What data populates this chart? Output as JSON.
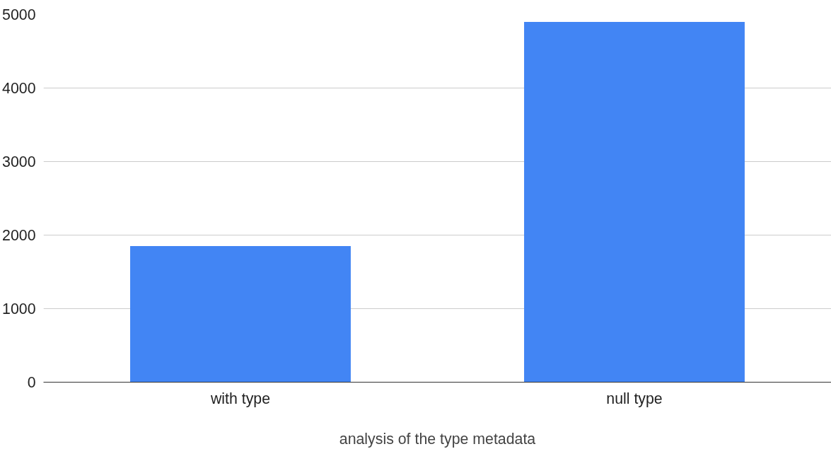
{
  "chart_data": {
    "type": "bar",
    "xlabel": "analysis of the type metadata",
    "categories": [
      "with type",
      "null type"
    ],
    "values": [
      1850,
      4900
    ],
    "color": "#4285f4",
    "ylim": [
      0,
      5000
    ],
    "yticks": [
      0,
      1000,
      2000,
      3000,
      4000,
      5000
    ],
    "grid": "y"
  }
}
